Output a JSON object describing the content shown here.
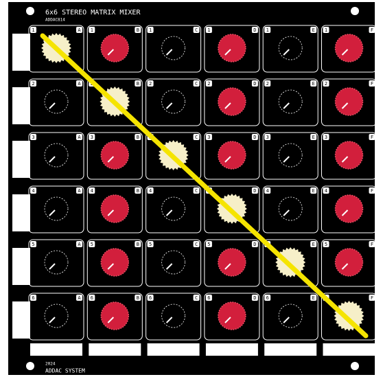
{
  "header": {
    "title": "6x6 STEREO MATRIX MIXER",
    "model": "ADDAC814"
  },
  "grid": {
    "row_labels": [
      "1",
      "2",
      "3",
      "4",
      "5",
      "6"
    ],
    "column_labels": [
      "A",
      "B",
      "C",
      "D",
      "E",
      "F"
    ]
  },
  "footer": {
    "year": "2024",
    "brand": "ADDAC SYSTEM"
  }
}
